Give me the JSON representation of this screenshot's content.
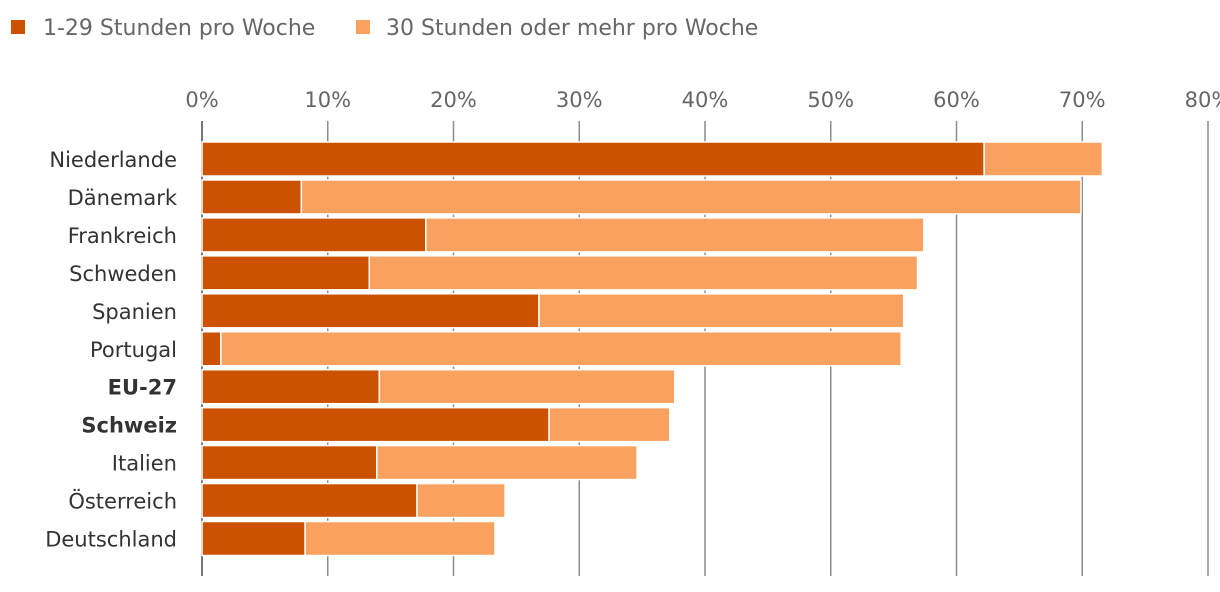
{
  "chart_data": {
    "type": "bar",
    "orientation": "horizontal",
    "stacked": true,
    "title": "",
    "xlabel": "",
    "ylabel": "",
    "xlim": [
      0,
      80
    ],
    "x_ticks": [
      0,
      10,
      20,
      30,
      40,
      50,
      60,
      70,
      80
    ],
    "tick_suffix": "%",
    "grid": true,
    "legend_position": "top-left",
    "categories": [
      "Niederlande",
      "Dänemark",
      "Frankreich",
      "Schweden",
      "Spanien",
      "Portugal",
      "EU-27",
      "Schweiz",
      "Italien",
      "Österreich",
      "Deutschland"
    ],
    "bold_categories": [
      "EU-27",
      "Schweiz"
    ],
    "series": [
      {
        "name": "1-29 Stunden pro Woche",
        "color": "#cc5200",
        "values": [
          62.2,
          7.9,
          17.8,
          13.3,
          26.8,
          1.5,
          14.1,
          27.6,
          13.9,
          17.1,
          8.2
        ]
      },
      {
        "name": "30 Stunden oder mehr pro Woche",
        "color": "#f9a15e",
        "values": [
          9.4,
          62.0,
          39.6,
          43.6,
          29.0,
          54.1,
          23.5,
          9.6,
          20.7,
          7.0,
          15.1
        ]
      }
    ]
  }
}
